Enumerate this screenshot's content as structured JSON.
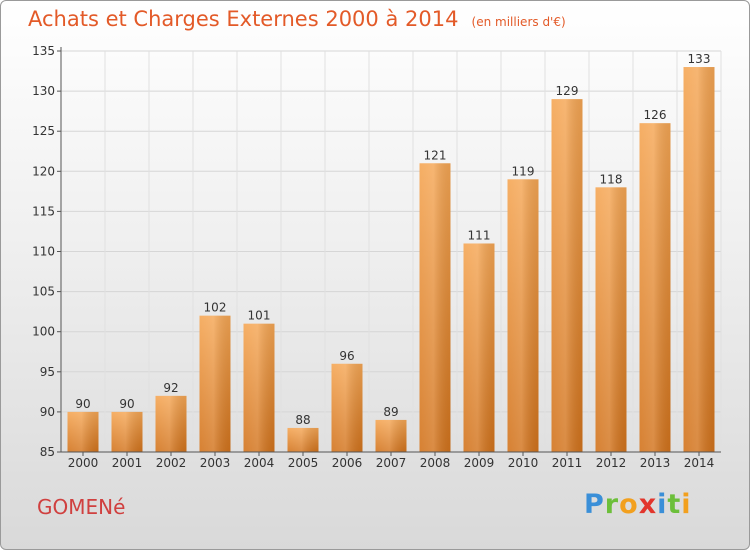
{
  "chart_data": {
    "type": "bar",
    "title": "Achats et Charges Externes 2000 à 2014",
    "subtitle": "(en milliers d'€)",
    "categories": [
      "2000",
      "2001",
      "2002",
      "2003",
      "2004",
      "2005",
      "2006",
      "2007",
      "2008",
      "2009",
      "2010",
      "2011",
      "2012",
      "2013",
      "2014"
    ],
    "values": [
      90,
      90,
      92,
      102,
      101,
      88,
      96,
      89,
      121,
      111,
      119,
      129,
      118,
      126,
      133
    ],
    "ylim": [
      85,
      135
    ],
    "yticks": [
      85,
      90,
      95,
      100,
      105,
      110,
      115,
      120,
      125,
      130,
      135
    ],
    "grid": true,
    "bar_color": "#f29a3c"
  },
  "footer": {
    "place": "GOMENé",
    "brand": "Proxiti",
    "brand_letters": [
      {
        "ch": "P",
        "color": "#3a8fd8"
      },
      {
        "ch": "r",
        "color": "#6cbf3a"
      },
      {
        "ch": "o",
        "color": "#f2a01e"
      },
      {
        "ch": "x",
        "color": "#e2352c"
      },
      {
        "ch": "i",
        "color": "#3a8fd8"
      },
      {
        "ch": "t",
        "color": "#6cbf3a"
      },
      {
        "ch": "i",
        "color": "#f2a01e"
      }
    ]
  }
}
